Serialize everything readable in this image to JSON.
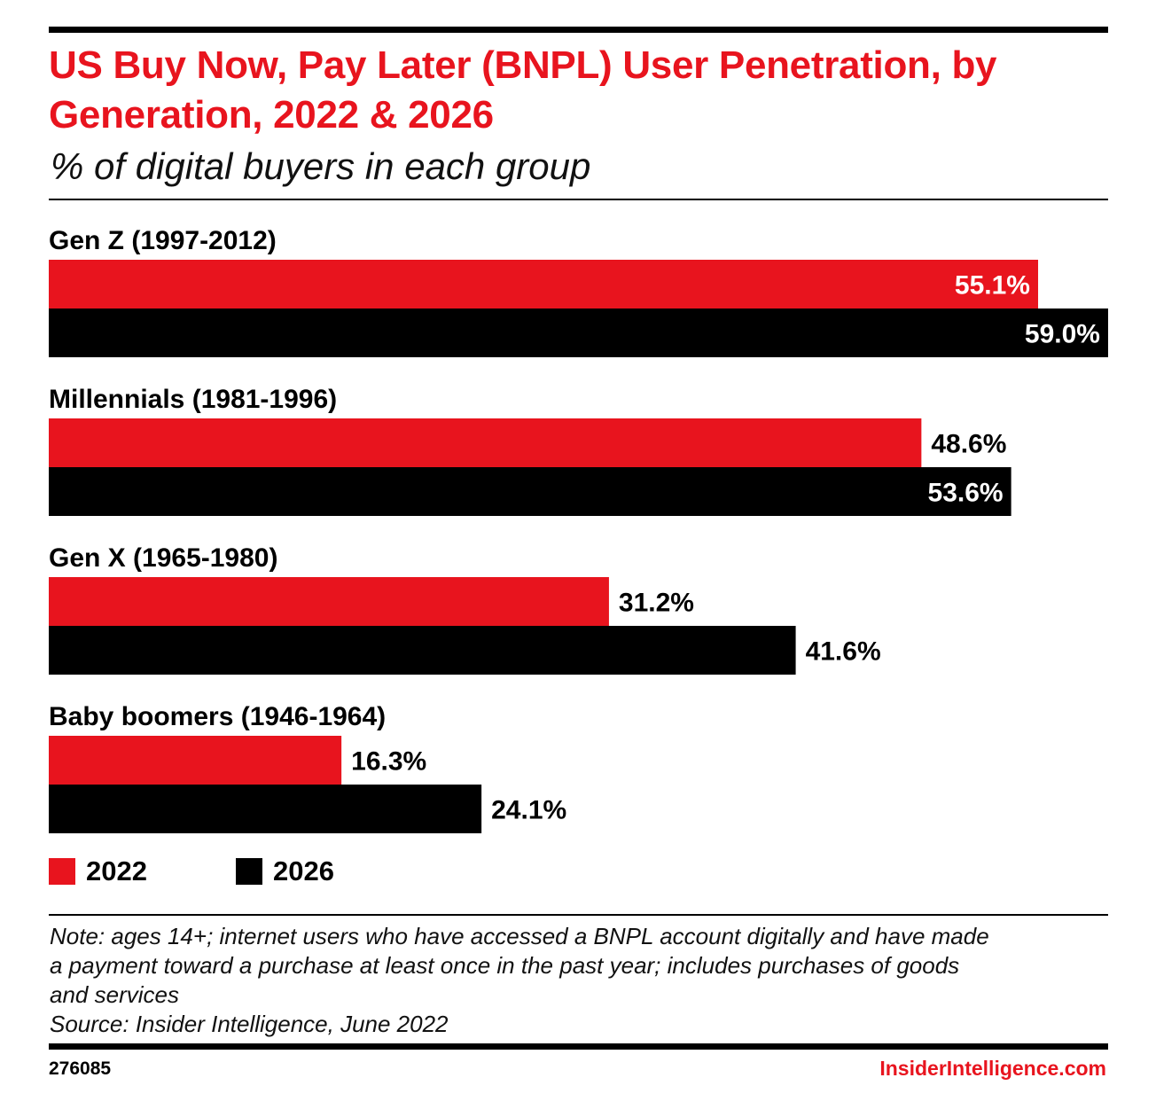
{
  "chart_data": {
    "type": "bar",
    "orientation": "horizontal",
    "title": "US Buy Now, Pay Later (BNPL) User Penetration, by Generation, 2022 & 2026",
    "subtitle": "% of digital buyers in each group",
    "categories": [
      "Gen Z (1997-2012)",
      "Millennials (1981-1996)",
      "Gen X (1965-1980)",
      "Baby boomers (1946-1964)"
    ],
    "series": [
      {
        "name": "2022",
        "color": "#e8141e",
        "values": [
          55.1,
          48.6,
          31.2,
          16.3
        ],
        "labels": [
          "55.1%",
          "48.6%",
          "31.2%",
          "16.3%"
        ]
      },
      {
        "name": "2026",
        "color": "#000000",
        "values": [
          59.0,
          53.6,
          41.6,
          24.1
        ],
        "labels": [
          "59.0%",
          "53.6%",
          "41.6%",
          "24.1%"
        ]
      }
    ],
    "xlim": [
      0,
      59
    ],
    "unit": "%",
    "legend_position": "bottom-left"
  },
  "note": {
    "lines": [
      "Note: ages 14+; internet users who have accessed a BNPL account digitally and have made",
      "a payment toward a purchase at least once in the past year; includes purchases of goods",
      "and services",
      "Source: Insider Intelligence, June 2022"
    ]
  },
  "footer": {
    "chart_id": "276085",
    "brand": "InsiderIntelligence.com"
  }
}
